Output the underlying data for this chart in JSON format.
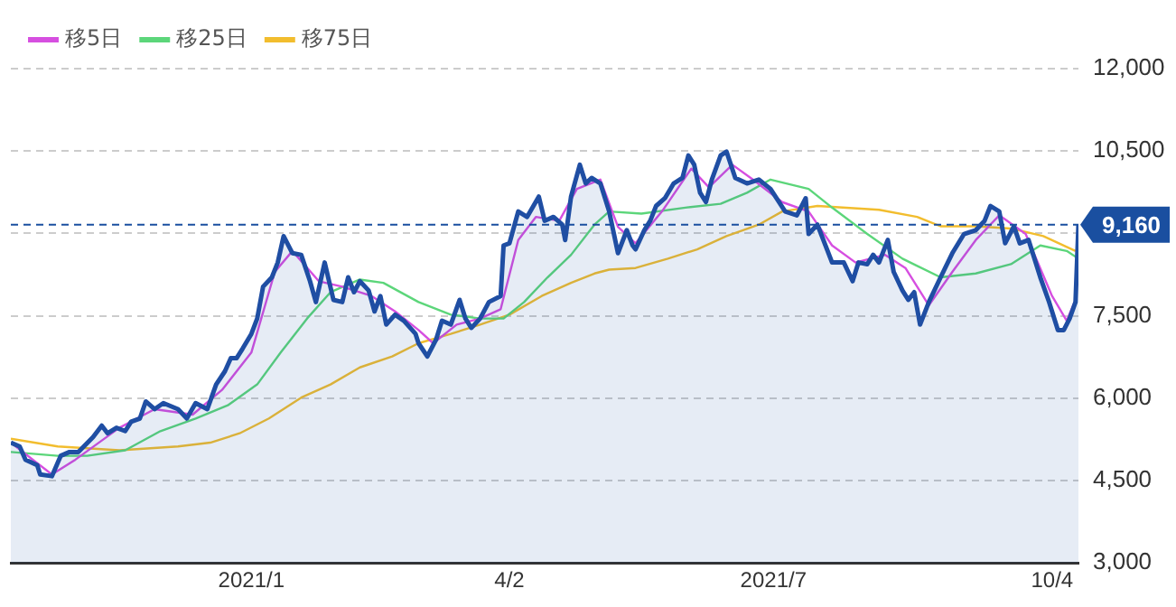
{
  "chart_data": {
    "type": "line",
    "legend": "top left",
    "grid": "y",
    "marker": "none",
    "xlim": [
      "2020-10-14",
      "2021-10-13"
    ],
    "xticks": [
      {
        "value": "2021-01-04",
        "label": "2021/1"
      },
      {
        "value": "2021-04-02",
        "label": "4/2"
      },
      {
        "value": "2021-07-01",
        "label": "2021/7"
      },
      {
        "value": "2021-10-04",
        "label": "10/4"
      }
    ],
    "ylim": [
      3000,
      12000
    ],
    "yticks": [
      {
        "value": 3000,
        "label": "3,000"
      },
      {
        "value": 4500,
        "label": "4,500"
      },
      {
        "value": 6000,
        "label": "6,000"
      },
      {
        "value": 7500,
        "label": "7,500"
      },
      {
        "value": 9000,
        "label": null
      },
      {
        "value": 10500,
        "label": "10,500"
      },
      {
        "value": 12000,
        "label": "12,000"
      }
    ],
    "ref_lines": [
      {
        "axis": "y",
        "value": 9160,
        "label": "9,160",
        "color": "#1a4fa0",
        "line_style": "dashed"
      }
    ],
    "series": [
      {
        "type": "area",
        "color": "#1f4ea3",
        "x": [
          "2020-10-14",
          "2020-10-17",
          "2020-10-19",
          "2020-10-23",
          "2020-10-24",
          "2020-10-28",
          "2020-10-31",
          "2020-11-03",
          "2020-11-06",
          "2020-11-11",
          "2020-11-14",
          "2020-11-16",
          "2020-11-19",
          "2020-11-22",
          "2020-11-24",
          "2020-11-27",
          "2020-11-29",
          "2020-12-02",
          "2020-12-05",
          "2020-12-10",
          "2020-12-13",
          "2020-12-16",
          "2020-12-20",
          "2020-12-23",
          "2020-12-26",
          "2020-12-28",
          "2020-12-30",
          "2021-01-01",
          "2021-01-04",
          "2021-01-06",
          "2021-01-08",
          "2021-01-11",
          "2021-01-13",
          "2021-01-15",
          "2021-01-18",
          "2021-01-21",
          "2021-01-24",
          "2021-01-26",
          "2021-01-29",
          "2021-02-01",
          "2021-02-04",
          "2021-02-06",
          "2021-02-08",
          "2021-02-10",
          "2021-02-13",
          "2021-02-15",
          "2021-02-17",
          "2021-02-19",
          "2021-02-22",
          "2021-02-25",
          "2021-03-01",
          "2021-03-02",
          "2021-03-05",
          "2021-03-08",
          "2021-03-10",
          "2021-03-13",
          "2021-03-16",
          "2021-03-18",
          "2021-03-20",
          "2021-03-23",
          "2021-03-26",
          "2021-03-30",
          "2021-03-31",
          "2021-04-02",
          "2021-04-05",
          "2021-04-08",
          "2021-04-12",
          "2021-04-14",
          "2021-04-17",
          "2021-04-20",
          "2021-04-21",
          "2021-04-23",
          "2021-04-26",
          "2021-04-28",
          "2021-04-30",
          "2021-05-03",
          "2021-05-06",
          "2021-05-09",
          "2021-05-12",
          "2021-05-14",
          "2021-05-15",
          "2021-05-18",
          "2021-05-20",
          "2021-05-22",
          "2021-05-25",
          "2021-05-28",
          "2021-05-31",
          "2021-06-02",
          "2021-06-04",
          "2021-06-06",
          "2021-06-08",
          "2021-06-10",
          "2021-06-13",
          "2021-06-15",
          "2021-06-18",
          "2021-06-22",
          "2021-06-26",
          "2021-06-30",
          "2021-07-05",
          "2021-07-09",
          "2021-07-12",
          "2021-07-13",
          "2021-07-16",
          "2021-07-21",
          "2021-07-25",
          "2021-07-28",
          "2021-07-30",
          "2021-08-02",
          "2021-08-04",
          "2021-08-06",
          "2021-08-09",
          "2021-08-11",
          "2021-08-14",
          "2021-08-16",
          "2021-08-18",
          "2021-08-20",
          "2021-08-23",
          "2021-08-27",
          "2021-08-31",
          "2021-09-04",
          "2021-09-08",
          "2021-09-11",
          "2021-09-13",
          "2021-09-16",
          "2021-09-18",
          "2021-09-21",
          "2021-09-23",
          "2021-09-26",
          "2021-09-30",
          "2021-10-03",
          "2021-10-06",
          "2021-10-08",
          "2021-10-10",
          "2021-10-12",
          "2021-10-13"
        ],
        "values": [
          5190,
          5120,
          4880,
          4780,
          4610,
          4580,
          4950,
          5020,
          5020,
          5290,
          5500,
          5360,
          5460,
          5400,
          5570,
          5630,
          5940,
          5800,
          5910,
          5800,
          5630,
          5910,
          5800,
          6250,
          6490,
          6730,
          6730,
          6900,
          7170,
          7450,
          8030,
          8200,
          8470,
          8950,
          8640,
          8610,
          8130,
          7750,
          8470,
          7790,
          7750,
          8200,
          7930,
          8130,
          7960,
          7580,
          7860,
          7340,
          7520,
          7410,
          7170,
          7000,
          6760,
          7070,
          7410,
          7340,
          7790,
          7450,
          7280,
          7450,
          7750,
          7860,
          8780,
          8820,
          9400,
          9300,
          9670,
          9230,
          9300,
          9160,
          8880,
          9670,
          10250,
          9910,
          10010,
          9910,
          9400,
          8640,
          9060,
          8780,
          8710,
          9060,
          9230,
          9500,
          9640,
          9910,
          10010,
          10420,
          10250,
          9740,
          9570,
          9980,
          10420,
          10490,
          10010,
          9910,
          9980,
          9810,
          9400,
          9330,
          9640,
          8990,
          9160,
          8470,
          8470,
          8130,
          8470,
          8440,
          8610,
          8470,
          8880,
          8300,
          7960,
          7790,
          7930,
          7340,
          7750,
          8200,
          8640,
          8990,
          9060,
          9230,
          9500,
          9400,
          8820,
          9130,
          8820,
          8880,
          8200,
          7750,
          7240,
          7240,
          7450,
          7750,
          9160
        ]
      },
      {
        "type": "line",
        "name": "移5日",
        "color": "#d64fe0",
        "x": [
          "2020-10-14",
          "2020-10-28",
          "2020-11-05",
          "2020-11-20",
          "2020-12-02",
          "2020-12-15",
          "2020-12-25",
          "2021-01-04",
          "2021-01-12",
          "2021-01-18",
          "2021-01-27",
          "2021-02-04",
          "2021-02-14",
          "2021-02-22",
          "2021-03-02",
          "2021-03-07",
          "2021-03-15",
          "2021-03-23",
          "2021-03-30",
          "2021-04-05",
          "2021-04-11",
          "2021-04-19",
          "2021-04-25",
          "2021-05-03",
          "2021-05-09",
          "2021-05-15",
          "2021-05-24",
          "2021-06-03",
          "2021-06-09",
          "2021-06-17",
          "2021-06-24",
          "2021-07-04",
          "2021-07-13",
          "2021-07-21",
          "2021-07-29",
          "2021-08-08",
          "2021-08-15",
          "2021-08-23",
          "2021-08-31",
          "2021-09-08",
          "2021-09-16",
          "2021-09-25",
          "2021-10-04",
          "2021-10-09",
          "2021-10-12"
        ],
        "values": [
          5190,
          4610,
          4880,
          5460,
          5800,
          5700,
          6150,
          6830,
          8300,
          8680,
          8130,
          8030,
          7860,
          7580,
          7240,
          7000,
          7340,
          7450,
          7620,
          8880,
          9300,
          9230,
          9810,
          9980,
          9120,
          8820,
          9400,
          10180,
          9840,
          10250,
          9980,
          9570,
          9400,
          8780,
          8470,
          8610,
          8370,
          7690,
          8300,
          8880,
          9330,
          8990,
          7860,
          7410,
          7790
        ]
      },
      {
        "type": "line",
        "name": "移25日",
        "color": "#5cd67a",
        "x": [
          "2020-10-14",
          "2020-10-30",
          "2020-11-09",
          "2020-11-22",
          "2020-12-04",
          "2020-12-16",
          "2020-12-27",
          "2021-01-06",
          "2021-01-14",
          "2021-01-23",
          "2021-01-31",
          "2021-02-10",
          "2021-02-18",
          "2021-03-02",
          "2021-03-13",
          "2021-03-23",
          "2021-03-31",
          "2021-04-07",
          "2021-04-15",
          "2021-04-23",
          "2021-05-01",
          "2021-05-06",
          "2021-05-17",
          "2021-06-01",
          "2021-06-13",
          "2021-06-22",
          "2021-06-30",
          "2021-07-13",
          "2021-07-21",
          "2021-08-02",
          "2021-08-14",
          "2021-08-27",
          "2021-09-08",
          "2021-09-20",
          "2021-09-30",
          "2021-10-09",
          "2021-10-13"
        ],
        "values": [
          5020,
          4950,
          4950,
          5050,
          5400,
          5630,
          5870,
          6250,
          6830,
          7450,
          7930,
          8160,
          8100,
          7750,
          7520,
          7450,
          7450,
          7750,
          8200,
          8610,
          9160,
          9400,
          9360,
          9470,
          9540,
          9740,
          9980,
          9810,
          9470,
          8990,
          8540,
          8200,
          8270,
          8440,
          8780,
          8680,
          8540
        ]
      },
      {
        "type": "line",
        "name": "移75日",
        "color": "#f2bd2e",
        "x": [
          "2020-10-14",
          "2020-10-30",
          "2020-11-20",
          "2020-12-10",
          "2020-12-21",
          "2020-12-31",
          "2021-01-10",
          "2021-01-21",
          "2021-01-31",
          "2021-02-10",
          "2021-02-21",
          "2021-03-02",
          "2021-03-13",
          "2021-03-23",
          "2021-04-02",
          "2021-04-13",
          "2021-04-23",
          "2021-05-01",
          "2021-05-06",
          "2021-05-15",
          "2021-05-26",
          "2021-06-05",
          "2021-06-15",
          "2021-06-26",
          "2021-07-04",
          "2021-07-16",
          "2021-08-06",
          "2021-08-19",
          "2021-08-27",
          "2021-09-08",
          "2021-09-20",
          "2021-10-01",
          "2021-10-12"
        ],
        "values": [
          5260,
          5120,
          5050,
          5120,
          5190,
          5360,
          5630,
          6010,
          6250,
          6560,
          6760,
          7000,
          7170,
          7340,
          7520,
          7860,
          8100,
          8270,
          8340,
          8370,
          8540,
          8710,
          8950,
          9160,
          9400,
          9500,
          9430,
          9300,
          9130,
          9130,
          9090,
          8950,
          8680
        ]
      }
    ]
  }
}
